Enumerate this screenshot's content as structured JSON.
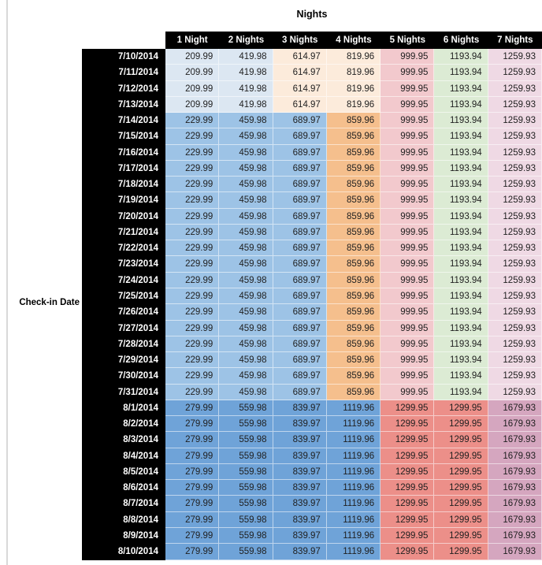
{
  "palette": {
    "pale_blue": "#DCE7F2",
    "pale_orange": "#FCEBDB",
    "light_blue": "#9DC3E6",
    "orange": "#F5BF8D",
    "pink": "#F2C9CD",
    "green": "#DCEBD4",
    "lavender": "#EFD9E4",
    "blue": "#6FA3D8",
    "salmon": "#EC8F89",
    "mauve": "#D5A6BF",
    "header_bg": "#000000",
    "header_text": "#FFFFFF"
  },
  "bands": {
    "early": [
      "pale_blue",
      "pale_blue",
      "pale_orange",
      "pale_orange",
      "pink",
      "green",
      "lavender"
    ],
    "mid": [
      "light_blue",
      "light_blue",
      "light_blue",
      "orange",
      "pink",
      "green",
      "lavender"
    ],
    "august": [
      "blue",
      "blue",
      "blue",
      "blue",
      "salmon",
      "salmon",
      "mauve"
    ]
  },
  "chart_data": {
    "type": "heatmap",
    "title": "Nights",
    "row_axis_label": "Check-in Date",
    "columns": [
      "1 Night",
      "2 Nights",
      "3 Nights",
      "4 Nights",
      "5 Nights",
      "6 Nights",
      "7 Nights"
    ],
    "rows": [
      {
        "date": "7/10/2014",
        "band": "early",
        "values": [
          "209.99",
          "419.98",
          "614.97",
          "819.96",
          "999.95",
          "1193.94",
          "1259.93"
        ]
      },
      {
        "date": "7/11/2014",
        "band": "early",
        "values": [
          "209.99",
          "419.98",
          "614.97",
          "819.96",
          "999.95",
          "1193.94",
          "1259.93"
        ]
      },
      {
        "date": "7/12/2014",
        "band": "early",
        "values": [
          "209.99",
          "419.98",
          "614.97",
          "819.96",
          "999.95",
          "1193.94",
          "1259.93"
        ]
      },
      {
        "date": "7/13/2014",
        "band": "early",
        "values": [
          "209.99",
          "419.98",
          "614.97",
          "819.96",
          "999.95",
          "1193.94",
          "1259.93"
        ]
      },
      {
        "date": "7/14/2014",
        "band": "mid",
        "values": [
          "229.99",
          "459.98",
          "689.97",
          "859.96",
          "999.95",
          "1193.94",
          "1259.93"
        ]
      },
      {
        "date": "7/15/2014",
        "band": "mid",
        "values": [
          "229.99",
          "459.98",
          "689.97",
          "859.96",
          "999.95",
          "1193.94",
          "1259.93"
        ]
      },
      {
        "date": "7/16/2014",
        "band": "mid",
        "values": [
          "229.99",
          "459.98",
          "689.97",
          "859.96",
          "999.95",
          "1193.94",
          "1259.93"
        ]
      },
      {
        "date": "7/17/2014",
        "band": "mid",
        "values": [
          "229.99",
          "459.98",
          "689.97",
          "859.96",
          "999.95",
          "1193.94",
          "1259.93"
        ]
      },
      {
        "date": "7/18/2014",
        "band": "mid",
        "values": [
          "229.99",
          "459.98",
          "689.97",
          "859.96",
          "999.95",
          "1193.94",
          "1259.93"
        ]
      },
      {
        "date": "7/19/2014",
        "band": "mid",
        "values": [
          "229.99",
          "459.98",
          "689.97",
          "859.96",
          "999.95",
          "1193.94",
          "1259.93"
        ]
      },
      {
        "date": "7/20/2014",
        "band": "mid",
        "values": [
          "229.99",
          "459.98",
          "689.97",
          "859.96",
          "999.95",
          "1193.94",
          "1259.93"
        ]
      },
      {
        "date": "7/21/2014",
        "band": "mid",
        "values": [
          "229.99",
          "459.98",
          "689.97",
          "859.96",
          "999.95",
          "1193.94",
          "1259.93"
        ]
      },
      {
        "date": "7/22/2014",
        "band": "mid",
        "values": [
          "229.99",
          "459.98",
          "689.97",
          "859.96",
          "999.95",
          "1193.94",
          "1259.93"
        ]
      },
      {
        "date": "7/23/2014",
        "band": "mid",
        "values": [
          "229.99",
          "459.98",
          "689.97",
          "859.96",
          "999.95",
          "1193.94",
          "1259.93"
        ]
      },
      {
        "date": "7/24/2014",
        "band": "mid",
        "values": [
          "229.99",
          "459.98",
          "689.97",
          "859.96",
          "999.95",
          "1193.94",
          "1259.93"
        ]
      },
      {
        "date": "7/25/2014",
        "band": "mid",
        "values": [
          "229.99",
          "459.98",
          "689.97",
          "859.96",
          "999.95",
          "1193.94",
          "1259.93"
        ]
      },
      {
        "date": "7/26/2014",
        "band": "mid",
        "values": [
          "229.99",
          "459.98",
          "689.97",
          "859.96",
          "999.95",
          "1193.94",
          "1259.93"
        ]
      },
      {
        "date": "7/27/2014",
        "band": "mid",
        "values": [
          "229.99",
          "459.98",
          "689.97",
          "859.96",
          "999.95",
          "1193.94",
          "1259.93"
        ]
      },
      {
        "date": "7/28/2014",
        "band": "mid",
        "values": [
          "229.99",
          "459.98",
          "689.97",
          "859.96",
          "999.95",
          "1193.94",
          "1259.93"
        ]
      },
      {
        "date": "7/29/2014",
        "band": "mid",
        "values": [
          "229.99",
          "459.98",
          "689.97",
          "859.96",
          "999.95",
          "1193.94",
          "1259.93"
        ]
      },
      {
        "date": "7/30/2014",
        "band": "mid",
        "values": [
          "229.99",
          "459.98",
          "689.97",
          "859.96",
          "999.95",
          "1193.94",
          "1259.93"
        ]
      },
      {
        "date": "7/31/2014",
        "band": "mid",
        "values": [
          "229.99",
          "459.98",
          "689.97",
          "859.96",
          "999.95",
          "1193.94",
          "1259.93"
        ]
      },
      {
        "date": "8/1/2014",
        "band": "august",
        "values": [
          "279.99",
          "559.98",
          "839.97",
          "1119.96",
          "1299.95",
          "1299.95",
          "1679.93"
        ]
      },
      {
        "date": "8/2/2014",
        "band": "august",
        "values": [
          "279.99",
          "559.98",
          "839.97",
          "1119.96",
          "1299.95",
          "1299.95",
          "1679.93"
        ]
      },
      {
        "date": "8/3/2014",
        "band": "august",
        "values": [
          "279.99",
          "559.98",
          "839.97",
          "1119.96",
          "1299.95",
          "1299.95",
          "1679.93"
        ]
      },
      {
        "date": "8/4/2014",
        "band": "august",
        "values": [
          "279.99",
          "559.98",
          "839.97",
          "1119.96",
          "1299.95",
          "1299.95",
          "1679.93"
        ]
      },
      {
        "date": "8/5/2014",
        "band": "august",
        "values": [
          "279.99",
          "559.98",
          "839.97",
          "1119.96",
          "1299.95",
          "1299.95",
          "1679.93"
        ]
      },
      {
        "date": "8/6/2014",
        "band": "august",
        "values": [
          "279.99",
          "559.98",
          "839.97",
          "1119.96",
          "1299.95",
          "1299.95",
          "1679.93"
        ]
      },
      {
        "date": "8/7/2014",
        "band": "august",
        "values": [
          "279.99",
          "559.98",
          "839.97",
          "1119.96",
          "1299.95",
          "1299.95",
          "1679.93"
        ]
      },
      {
        "date": "8/8/2014",
        "band": "august",
        "values": [
          "279.99",
          "559.98",
          "839.97",
          "1119.96",
          "1299.95",
          "1299.95",
          "1679.93"
        ]
      },
      {
        "date": "8/9/2014",
        "band": "august",
        "values": [
          "279.99",
          "559.98",
          "839.97",
          "1119.96",
          "1299.95",
          "1299.95",
          "1679.93"
        ]
      },
      {
        "date": "8/10/2014",
        "band": "august",
        "values": [
          "279.99",
          "559.98",
          "839.97",
          "1119.96",
          "1299.95",
          "1299.95",
          "1679.93"
        ]
      }
    ]
  }
}
